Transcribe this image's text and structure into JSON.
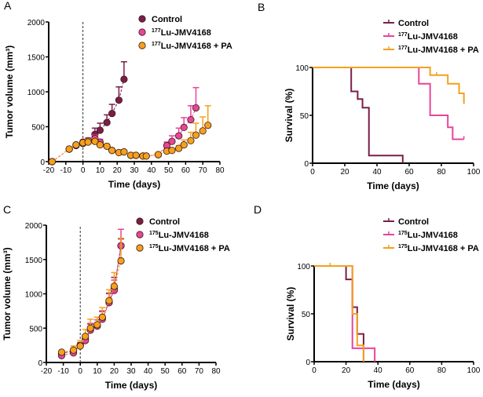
{
  "colors": {
    "control": "#7b1d4b",
    "lu": "#e8449a",
    "pa": "#f5a01e"
  },
  "chart_data": [
    {
      "panel": "A",
      "type": "line",
      "xlabel": "Time (days)",
      "ylabel": "Tumor volume (mm³)",
      "xlim": [
        -20,
        80
      ],
      "ylim": [
        0,
        2000
      ],
      "xticks": [
        -20,
        -10,
        0,
        10,
        20,
        30,
        40,
        50,
        60,
        70,
        80
      ],
      "yticks": [
        0,
        500,
        1000,
        1500,
        2000
      ],
      "vline": 0,
      "legend": "top-right",
      "series": [
        {
          "name": "Control",
          "sup": "",
          "label": "Control",
          "color": "control",
          "x": [
            -18,
            -8,
            -4,
            0,
            7,
            10,
            14,
            17,
            21,
            24
          ],
          "y": [
            0,
            180,
            230,
            260,
            390,
            450,
            560,
            690,
            880,
            1180
          ],
          "err": [
            0,
            0,
            20,
            20,
            90,
            100,
            110,
            130,
            190,
            250
          ]
        },
        {
          "name": "177Lu-JMV4168",
          "sup": "177",
          "label": "Lu-JMV4168",
          "color": "lu",
          "x": [
            -18,
            -8,
            -4,
            0,
            3,
            7,
            10,
            14,
            17,
            21,
            24,
            28,
            31,
            35,
            37,
            44,
            49,
            52,
            56,
            59,
            63,
            66
          ],
          "y": [
            0,
            180,
            240,
            280,
            300,
            330,
            280,
            220,
            160,
            130,
            140,
            90,
            90,
            80,
            80,
            100,
            230,
            290,
            370,
            490,
            600,
            770
          ],
          "err": [
            0,
            0,
            20,
            30,
            40,
            50,
            40,
            0,
            0,
            0,
            0,
            0,
            0,
            0,
            0,
            0,
            50,
            80,
            110,
            140,
            200,
            290
          ]
        },
        {
          "name": "177Lu-JMV4168 + PA",
          "sup": "177",
          "label": "Lu-JMV4168 + PA",
          "color": "pa",
          "x": [
            -18,
            -8,
            -4,
            0,
            3,
            7,
            10,
            14,
            17,
            21,
            24,
            28,
            31,
            35,
            37,
            44,
            49,
            52,
            56,
            59,
            63,
            66,
            70,
            73
          ],
          "y": [
            0,
            180,
            240,
            270,
            280,
            290,
            240,
            220,
            160,
            130,
            140,
            90,
            90,
            80,
            80,
            100,
            150,
            160,
            190,
            240,
            300,
            380,
            440,
            520
          ],
          "err": [
            0,
            0,
            20,
            30,
            40,
            40,
            20,
            0,
            0,
            0,
            0,
            0,
            0,
            0,
            0,
            0,
            0,
            0,
            40,
            70,
            120,
            170,
            200,
            280
          ]
        }
      ]
    },
    {
      "panel": "B",
      "type": "survival",
      "xlabel": "Time (days)",
      "ylabel": "Survival (%)",
      "xlim": [
        0,
        100
      ],
      "ylim": [
        0,
        100
      ],
      "xticks": [
        0,
        20,
        40,
        60,
        80,
        100
      ],
      "yticks": [
        0,
        50,
        100
      ],
      "legend": "top-right",
      "series": [
        {
          "name": "Control",
          "sup": "",
          "label": "Control",
          "color": "control",
          "steps": [
            [
              0,
              100
            ],
            [
              24,
              75
            ],
            [
              28,
              67
            ],
            [
              31,
              58
            ],
            [
              35,
              8
            ],
            [
              56,
              0
            ]
          ],
          "end": 56,
          "censor": []
        },
        {
          "name": "177Lu-JMV4168",
          "sup": "177",
          "label": "Lu-JMV4168",
          "color": "lu",
          "steps": [
            [
              0,
              100
            ],
            [
              66,
              83
            ],
            [
              73,
              50
            ],
            [
              84,
              37.5
            ],
            [
              87,
              25
            ]
          ],
          "end": 94,
          "censor": [
            94
          ]
        },
        {
          "name": "177Lu-JMV4168 + PA",
          "sup": "177",
          "label": "Lu-JMV4168 + PA",
          "color": "pa",
          "steps": [
            [
              0,
              100
            ],
            [
              73,
              92
            ],
            [
              84,
              83
            ],
            [
              91,
              73
            ],
            [
              94,
              62
            ]
          ],
          "end": 94,
          "censor": [
            77
          ]
        }
      ]
    },
    {
      "panel": "C",
      "type": "line",
      "xlabel": "Time (days)",
      "ylabel": "Tumor volume (mm³)",
      "xlim": [
        -20,
        80
      ],
      "ylim": [
        0,
        2000
      ],
      "xticks": [
        -20,
        -10,
        0,
        10,
        20,
        30,
        40,
        50,
        60,
        70,
        80
      ],
      "yticks": [
        0,
        500,
        1000,
        1500,
        2000
      ],
      "vline": 0,
      "legend": "top-right",
      "series": [
        {
          "name": "Control",
          "sup": "",
          "label": "Control",
          "color": "control",
          "x": [
            -11,
            -4,
            0,
            3,
            6,
            10,
            13,
            17,
            20,
            24
          ],
          "y": [
            130,
            170,
            250,
            340,
            480,
            540,
            650,
            880,
            1080,
            1700
          ],
          "err": [
            20,
            30,
            40,
            60,
            80,
            120,
            100,
            130,
            160,
            100
          ]
        },
        {
          "name": "175Lu-JMV4168",
          "sup": "175",
          "label": "Lu-JMV4168",
          "color": "lu",
          "x": [
            -11,
            -4,
            0,
            3,
            6,
            10,
            13,
            17,
            20,
            24
          ],
          "y": [
            100,
            140,
            250,
            320,
            470,
            530,
            630,
            870,
            1050,
            1700
          ],
          "err": [
            20,
            30,
            40,
            60,
            100,
            90,
            110,
            130,
            150,
            240
          ]
        },
        {
          "name": "175Lu-JMV4168 + PA",
          "sup": "175",
          "label": "Lu-JMV4168 + PA",
          "color": "pa",
          "x": [
            -11,
            -4,
            0,
            3,
            6,
            10,
            13,
            17,
            20,
            24
          ],
          "y": [
            150,
            180,
            240,
            380,
            500,
            550,
            660,
            900,
            1110,
            1480
          ],
          "err": [
            20,
            60,
            80,
            100,
            130,
            110,
            140,
            160,
            200,
            330
          ]
        }
      ]
    },
    {
      "panel": "D",
      "type": "survival",
      "xlabel": "Time (days)",
      "ylabel": "Survival (%)",
      "xlim": [
        0,
        100
      ],
      "ylim": [
        0,
        100
      ],
      "xticks": [
        0,
        20,
        40,
        60,
        80,
        100
      ],
      "yticks": [
        0,
        50,
        100
      ],
      "legend": "top-right",
      "series": [
        {
          "name": "Control",
          "sup": "",
          "label": "Control",
          "color": "control",
          "steps": [
            [
              0,
              100
            ],
            [
              20,
              86
            ],
            [
              24,
              57
            ],
            [
              27,
              29
            ],
            [
              31,
              0
            ]
          ],
          "end": 31,
          "censor": []
        },
        {
          "name": "175Lu-JMV4168",
          "sup": "175",
          "label": "Lu-JMV4168",
          "color": "lu",
          "steps": [
            [
              0,
              100
            ],
            [
              24,
              14
            ],
            [
              38,
              0
            ]
          ],
          "end": 38,
          "censor": []
        },
        {
          "name": "175Lu-JMV4168 + PA",
          "sup": "175",
          "label": "Lu-JMV4168 + PA",
          "color": "pa",
          "steps": [
            [
              0,
              100
            ],
            [
              24,
              50
            ],
            [
              27,
              17
            ],
            [
              31,
              0
            ]
          ],
          "end": 31,
          "censor": [
            10
          ]
        }
      ]
    }
  ]
}
